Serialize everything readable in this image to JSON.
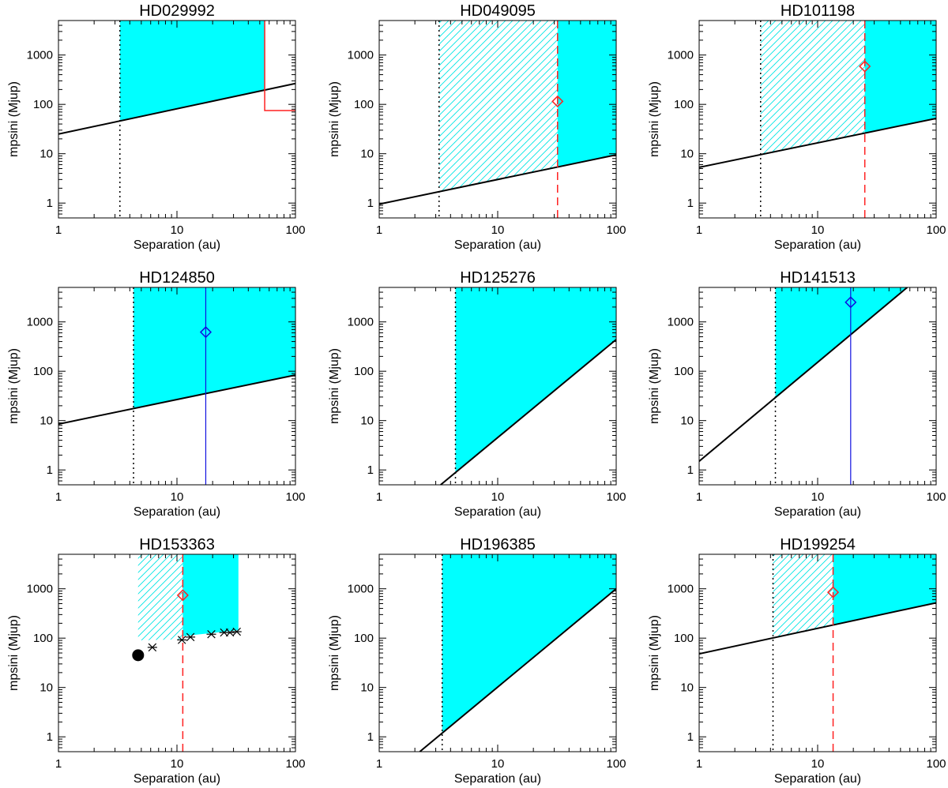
{
  "figure": {
    "layout": "3x3 grid of log-log panels"
  },
  "chart_data": [
    {
      "type": "area",
      "title": "HD029992",
      "xlabel": "Separation (au)",
      "ylabel": "mpsini (Mjup)",
      "xscale": "log",
      "yscale": "log",
      "xlim": [
        1,
        100
      ],
      "ylim": [
        0.5,
        5000
      ],
      "xticks": [
        1,
        10,
        100
      ],
      "xtick_labels": [
        "1",
        "10",
        "100"
      ],
      "yticks": [
        1,
        10,
        100,
        1000
      ],
      "ytick_labels": [
        "1",
        "10",
        "100",
        "1000"
      ],
      "limit_line": {
        "x": [
          1,
          100
        ],
        "y": [
          25,
          265
        ]
      },
      "inner_limit_x": 3.3,
      "solid_region": {
        "x": [
          3.3,
          55
        ]
      },
      "red_line": {
        "kind": "step",
        "x_step": 55,
        "y_level": 75
      }
    },
    {
      "type": "area",
      "title": "HD049095",
      "xlabel": "Separation (au)",
      "ylabel": "mpsini (Mjup)",
      "xscale": "log",
      "yscale": "log",
      "xlim": [
        1,
        100
      ],
      "ylim": [
        0.5,
        5000
      ],
      "xticks": [
        1,
        10,
        100
      ],
      "xtick_labels": [
        "1",
        "10",
        "100"
      ],
      "yticks": [
        1,
        10,
        100,
        1000
      ],
      "ytick_labels": [
        "1",
        "10",
        "100",
        "1000"
      ],
      "limit_line": {
        "x": [
          1,
          100
        ],
        "y": [
          0.95,
          9.5
        ]
      },
      "inner_limit_x": 3.2,
      "hatched_region": {
        "x": [
          3.2,
          32
        ]
      },
      "solid_region": {
        "x": [
          32,
          100
        ]
      },
      "red_line": {
        "kind": "dashed",
        "x": 32
      },
      "marker": {
        "x": 32,
        "y": 115,
        "color": "red"
      }
    },
    {
      "type": "area",
      "title": "HD101198",
      "xlabel": "Separation (au)",
      "ylabel": "mpsini (Mjup)",
      "xscale": "log",
      "yscale": "log",
      "xlim": [
        1,
        100
      ],
      "ylim": [
        0.5,
        5000
      ],
      "xticks": [
        1,
        10,
        100
      ],
      "xtick_labels": [
        "1",
        "10",
        "100"
      ],
      "yticks": [
        1,
        10,
        100,
        1000
      ],
      "ytick_labels": [
        "1",
        "10",
        "100",
        "1000"
      ],
      "limit_line": {
        "x": [
          1,
          100
        ],
        "y": [
          5.3,
          52
        ]
      },
      "inner_limit_x": 3.3,
      "hatched_region": {
        "x": [
          3.3,
          25
        ]
      },
      "solid_region": {
        "x": [
          25,
          100
        ]
      },
      "red_line": {
        "kind": "dashed",
        "x": 25
      },
      "marker": {
        "x": 25,
        "y": 590,
        "color": "red"
      }
    },
    {
      "type": "area",
      "title": "HD124850",
      "xlabel": "Separation (au)",
      "ylabel": "mpsini (Mjup)",
      "xscale": "log",
      "yscale": "log",
      "xlim": [
        1,
        100
      ],
      "ylim": [
        0.5,
        5000
      ],
      "xticks": [
        1,
        10,
        100
      ],
      "xtick_labels": [
        "1",
        "10",
        "100"
      ],
      "yticks": [
        1,
        10,
        100,
        1000
      ],
      "ytick_labels": [
        "1",
        "10",
        "100",
        "1000"
      ],
      "limit_line": {
        "x": [
          1,
          100
        ],
        "y": [
          8.5,
          84
        ]
      },
      "inner_limit_x": 4.3,
      "solid_region": {
        "x": [
          4.3,
          100
        ]
      },
      "blue_line": {
        "x": 17.5
      },
      "marker": {
        "x": 17.5,
        "y": 620,
        "color": "blue"
      }
    },
    {
      "type": "area",
      "title": "HD125276",
      "xlabel": "Separation (au)",
      "ylabel": "mpsini (Mjup)",
      "xscale": "log",
      "yscale": "log",
      "xlim": [
        1,
        100
      ],
      "ylim": [
        0.5,
        5000
      ],
      "xticks": [
        1,
        10,
        100
      ],
      "xtick_labels": [
        "1",
        "10",
        "100"
      ],
      "yticks": [
        1,
        10,
        100,
        1000
      ],
      "ytick_labels": [
        "1",
        "10",
        "100",
        "1000"
      ],
      "limit_line": {
        "x": [
          3.3,
          100
        ],
        "y": [
          0.5,
          440
        ]
      },
      "inner_limit_x": 4.4,
      "solid_region": {
        "x": [
          4.4,
          100
        ]
      }
    },
    {
      "type": "area",
      "title": "HD141513",
      "xlabel": "Separation (au)",
      "ylabel": "mpsini (Mjup)",
      "xscale": "log",
      "yscale": "log",
      "xlim": [
        1,
        100
      ],
      "ylim": [
        0.5,
        5000
      ],
      "xticks": [
        1,
        10,
        100
      ],
      "xtick_labels": [
        "1",
        "10",
        "100"
      ],
      "yticks": [
        1,
        10,
        100,
        1000
      ],
      "ytick_labels": [
        "1",
        "10",
        "100",
        "1000"
      ],
      "limit_line": {
        "x": [
          1,
          57
        ],
        "y": [
          1.5,
          5000
        ]
      },
      "inner_limit_x": 4.4,
      "solid_region": {
        "x": [
          4.4,
          57
        ]
      },
      "blue_line": {
        "x": 19
      },
      "marker": {
        "x": 19,
        "y": 2500,
        "color": "blue"
      }
    },
    {
      "type": "area",
      "title": "HD153363",
      "xlabel": "Separation (au)",
      "ylabel": "mpsini (Mjup)",
      "xscale": "log",
      "yscale": "log",
      "xlim": [
        1,
        100
      ],
      "ylim": [
        0.5,
        5000
      ],
      "xticks": [
        1,
        10,
        100
      ],
      "xtick_labels": [
        "1",
        "10",
        "100"
      ],
      "yticks": [
        1,
        10,
        100,
        1000
      ],
      "ytick_labels": [
        "1",
        "10",
        "100",
        "1000"
      ],
      "hatched_region": {
        "x": [
          4.7,
          11.2
        ],
        "y_floor": [
          90,
          95
        ]
      },
      "solid_region": {
        "x": [
          11.2,
          33
        ],
        "y_floor": [
          110,
          145
        ]
      },
      "red_line": {
        "kind": "dashed",
        "x": 11.2
      },
      "marker": {
        "x": 11.2,
        "y": 740,
        "color": "red"
      },
      "dot": {
        "x": 4.7,
        "y": 45
      },
      "stars": {
        "x": [
          6.2,
          11,
          13,
          19.5,
          25,
          28,
          32
        ],
        "y": [
          65,
          92,
          105,
          120,
          130,
          130,
          135
        ]
      }
    },
    {
      "type": "area",
      "title": "HD196385",
      "xlabel": "Separation (au)",
      "ylabel": "mpsini (Mjup)",
      "xscale": "log",
      "yscale": "log",
      "xlim": [
        1,
        100
      ],
      "ylim": [
        0.5,
        5000
      ],
      "xticks": [
        1,
        10,
        100
      ],
      "xtick_labels": [
        "1",
        "10",
        "100"
      ],
      "yticks": [
        1,
        10,
        100,
        1000
      ],
      "ytick_labels": [
        "1",
        "10",
        "100",
        "1000"
      ],
      "limit_line": {
        "x": [
          2.2,
          100
        ],
        "y": [
          0.5,
          1000
        ]
      },
      "inner_limit_x": 3.4,
      "solid_region": {
        "x": [
          3.4,
          100
        ]
      }
    },
    {
      "type": "area",
      "title": "HD199254",
      "xlabel": "Separation (au)",
      "ylabel": "mpsini (Mjup)",
      "xscale": "log",
      "yscale": "log",
      "xlim": [
        1,
        100
      ],
      "ylim": [
        0.5,
        5000
      ],
      "xticks": [
        1,
        10,
        100
      ],
      "xtick_labels": [
        "1",
        "10",
        "100"
      ],
      "yticks": [
        1,
        10,
        100,
        1000
      ],
      "ytick_labels": [
        "1",
        "10",
        "100",
        "1000"
      ],
      "limit_line": {
        "x": [
          1,
          100
        ],
        "y": [
          48,
          520
        ]
      },
      "inner_limit_x": 4.2,
      "hatched_region": {
        "x": [
          4.2,
          13.5
        ]
      },
      "solid_region": {
        "x": [
          13.5,
          100
        ]
      },
      "red_line": {
        "kind": "dashed",
        "x": 13.5
      },
      "marker": {
        "x": 13.5,
        "y": 850,
        "color": "red"
      }
    }
  ]
}
